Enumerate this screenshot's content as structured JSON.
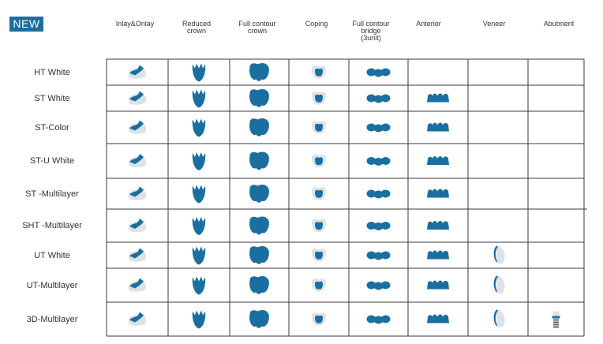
{
  "badge": "NEW",
  "colors": {
    "accent": "#1a6fa0",
    "tooth_blue": "#1a6fa0",
    "tooth_gray": "#dde2e6",
    "grid_line": "#3a3a3a"
  },
  "columns": [
    {
      "key": "inlay_onlay",
      "label": "Inlay&Onlay",
      "icon": "inlay-onlay-icon"
    },
    {
      "key": "reduced_crown",
      "label": "Reduced\ncrown",
      "icon": "reduced-crown-icon"
    },
    {
      "key": "full_contour_crown",
      "label": "Full contour\ncrown",
      "icon": "full-contour-crown-icon"
    },
    {
      "key": "coping",
      "label": "Coping",
      "icon": "coping-icon"
    },
    {
      "key": "full_contour_bridge",
      "label": "Full contour\nbridge\n(3unit)",
      "icon": "bridge-icon"
    },
    {
      "key": "anterior",
      "label": "Anterior",
      "icon": "anterior-icon"
    },
    {
      "key": "veneer",
      "label": "Veneer",
      "icon": "veneer-icon"
    },
    {
      "key": "abutment",
      "label": "Abutment",
      "icon": "abutment-icon"
    }
  ],
  "rows": [
    {
      "label": "HT White",
      "available": [
        true,
        true,
        true,
        true,
        true,
        false,
        false,
        false
      ]
    },
    {
      "label": "ST White",
      "available": [
        true,
        true,
        true,
        true,
        true,
        true,
        false,
        false
      ]
    },
    {
      "label": "ST-Color",
      "available": [
        true,
        true,
        true,
        true,
        true,
        true,
        false,
        false
      ]
    },
    {
      "label": "ST-U White",
      "available": [
        true,
        true,
        true,
        true,
        true,
        true,
        false,
        false
      ]
    },
    {
      "label": "ST -Multilayer",
      "available": [
        true,
        true,
        true,
        true,
        true,
        true,
        false,
        false
      ]
    },
    {
      "label": "SHT -Multilayer",
      "available": [
        true,
        true,
        true,
        true,
        true,
        true,
        false,
        false
      ]
    },
    {
      "label": "UT White",
      "available": [
        true,
        true,
        true,
        true,
        true,
        true,
        true,
        false
      ]
    },
    {
      "label": "UT-Multilayer",
      "available": [
        true,
        true,
        true,
        true,
        true,
        true,
        true,
        false
      ]
    },
    {
      "label": "3D-Multilayer",
      "available": [
        true,
        true,
        true,
        true,
        true,
        true,
        true,
        true
      ]
    }
  ]
}
